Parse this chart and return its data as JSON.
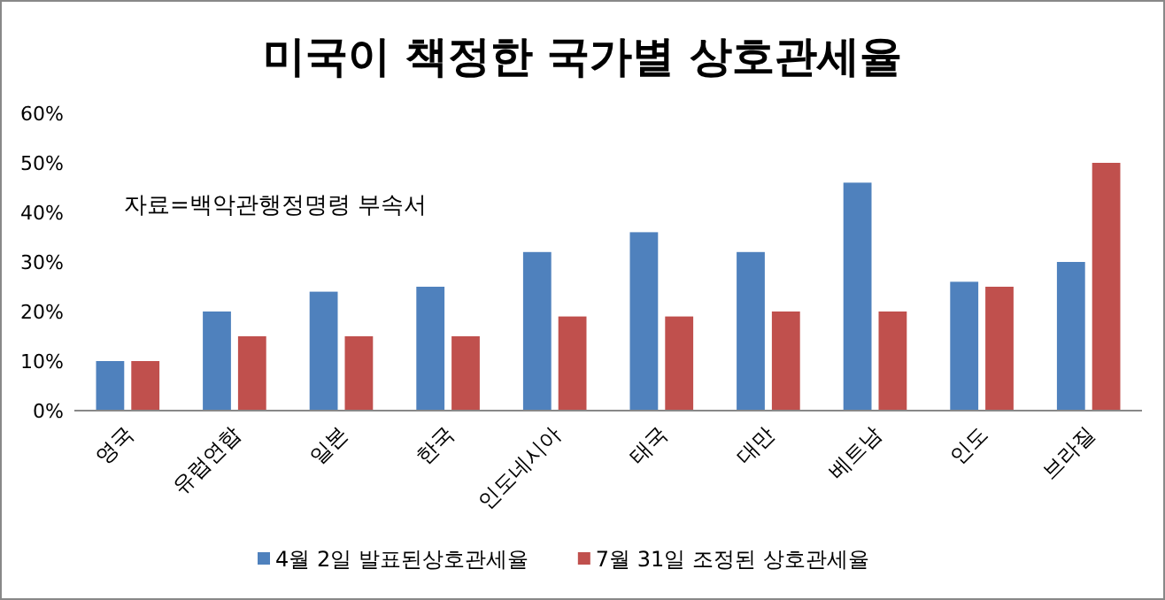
{
  "chart_data": {
    "type": "bar",
    "title": "미국이 책정한 국가별 상호관세율",
    "categories": [
      "영국",
      "유럽연합",
      "일본",
      "한국",
      "인도네시아",
      "태국",
      "대만",
      "베트남",
      "인도",
      "브라질"
    ],
    "series": [
      {
        "name": "4월 2일 발표된상호관세율",
        "color": "#4f81bd",
        "values": [
          10,
          20,
          24,
          25,
          32,
          36,
          32,
          46,
          26,
          30
        ]
      },
      {
        "name": "7월 31일 조정된 상호관세율",
        "color": "#c0504d",
        "values": [
          10,
          15,
          15,
          15,
          19,
          19,
          20,
          20,
          25,
          50
        ]
      }
    ],
    "ylim": [
      0,
      60
    ],
    "yticks": [
      {
        "value": 0,
        "label": "0%"
      },
      {
        "value": 10,
        "label": "10%"
      },
      {
        "value": 20,
        "label": "20%"
      },
      {
        "value": 30,
        "label": "30%"
      },
      {
        "value": 40,
        "label": "40%"
      },
      {
        "value": 50,
        "label": "50%"
      },
      {
        "value": 60,
        "label": "60%"
      }
    ],
    "annotations": [
      "자료=백악관행정명령 부속서"
    ],
    "grid": false,
    "legend": "bottom"
  }
}
